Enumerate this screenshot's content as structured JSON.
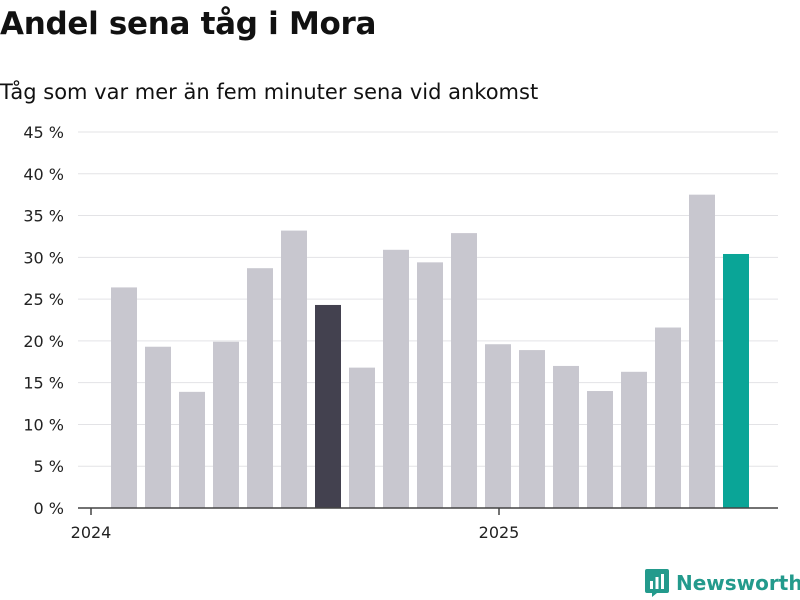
{
  "title": "Andel sena tåg i Mora",
  "subtitle": "Tåg som var mer än fem minuter sena vid ankomst",
  "brand": {
    "name": "Newsworthy",
    "logo_icon": "bar-chart-icon",
    "color": "#239a8c"
  },
  "chart_data": {
    "type": "bar",
    "title": "",
    "xlabel": "",
    "ylabel": "",
    "ylim": [
      0,
      45
    ],
    "y_ticks": [
      "0 %",
      "5 %",
      "10 %",
      "15 %",
      "20 %",
      "25 %",
      "30 %",
      "35 %",
      "40 %",
      "45 %"
    ],
    "y_tick_values": [
      0,
      5,
      10,
      15,
      20,
      25,
      30,
      35,
      40,
      45
    ],
    "x_tick_labels": [
      {
        "label": "2024",
        "category_index": 0
      },
      {
        "label": "2025",
        "category_index": 12
      }
    ],
    "grid": true,
    "legend": "none",
    "values": [
      26.4,
      19.3,
      13.9,
      19.9,
      28.7,
      33.2,
      24.3,
      16.8,
      30.9,
      29.4,
      32.9,
      19.6,
      18.9,
      17.0,
      14.0,
      16.3,
      21.6,
      37.5,
      30.4
    ],
    "colors": {
      "default": "#c8c7cf",
      "highlight_dark": "#43414f",
      "highlight_accent": "#0aa597"
    },
    "highlight_dark_index": 6,
    "highlight_accent_index": 18
  }
}
